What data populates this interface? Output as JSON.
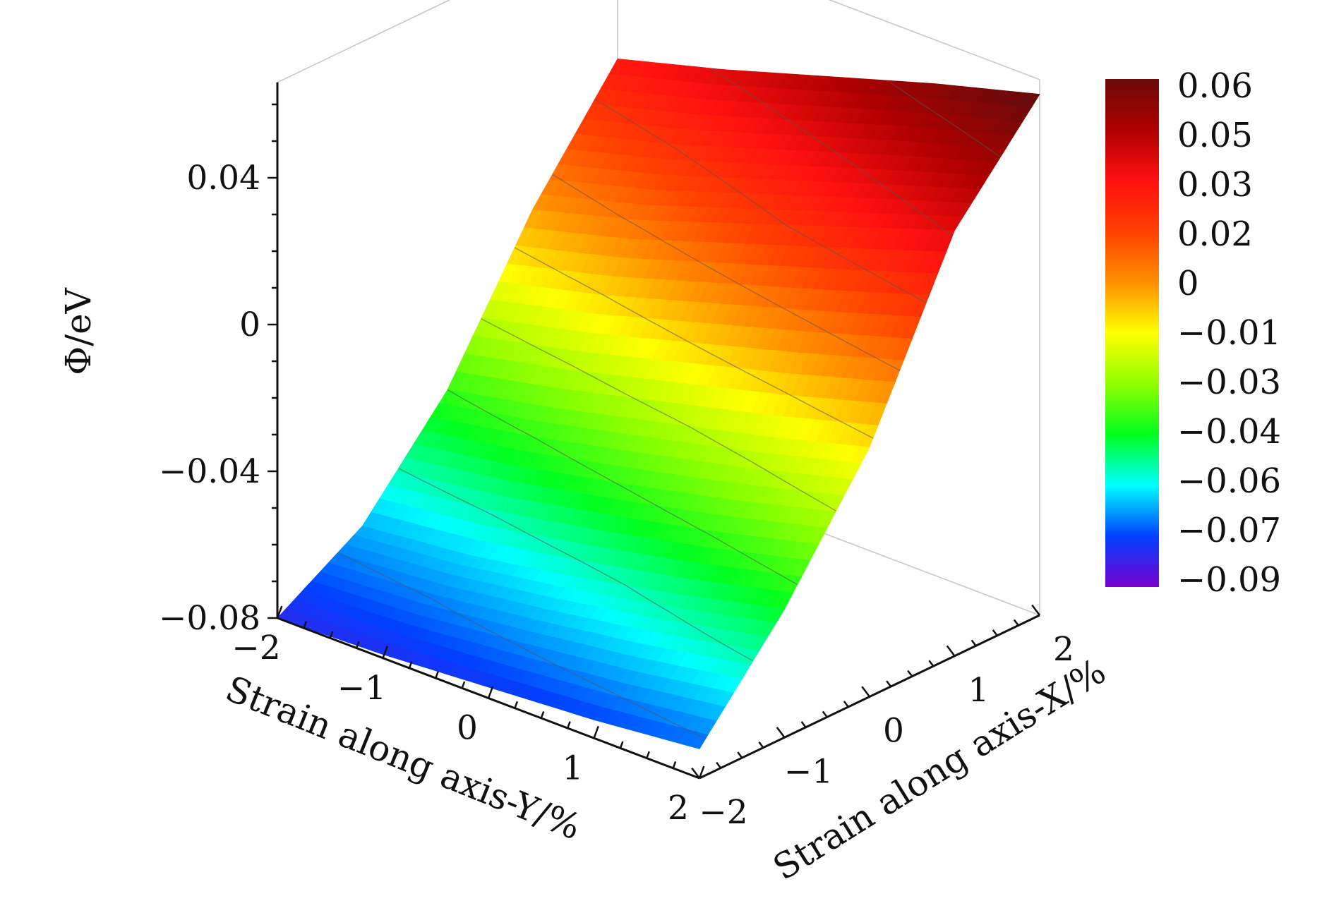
{
  "chart_data": {
    "type": "surface",
    "x_axis": {
      "title": "Strain along axis-X/%",
      "ticks": [
        -2,
        -1,
        0,
        1,
        2
      ],
      "tick_labels": [
        "−2",
        "−1",
        "0",
        "1",
        "2"
      ],
      "range": [
        -2,
        2
      ]
    },
    "y_axis": {
      "title": "Strain along axis-Y/%",
      "ticks": [
        -2,
        -1,
        0,
        1,
        2
      ],
      "tick_labels": [
        "−2",
        "−1",
        "0",
        "1",
        "2"
      ],
      "range": [
        -2,
        2
      ]
    },
    "z_axis": {
      "title": "Φ/eV",
      "ticks": [
        -0.08,
        -0.04,
        0,
        0.04
      ],
      "tick_labels": [
        "−0.08",
        "−0.04",
        "0",
        "0.04"
      ],
      "range": [
        -0.08,
        0.06
      ]
    },
    "colorbar": {
      "labels": [
        "0.06",
        "0.05",
        "0.03",
        "0.02",
        "0",
        "−0.01",
        "−0.03",
        "−0.04",
        "−0.06",
        "−0.07",
        "−0.09"
      ],
      "range": [
        -0.09,
        0.06
      ],
      "colormap": "rainbow",
      "colors": [
        "#6a0a0a",
        "#b00000",
        "#ff1010",
        "#ff4000",
        "#ff9000",
        "#ffff00",
        "#90ff00",
        "#00ff20",
        "#00ffff",
        "#0040ff",
        "#7a00d0"
      ]
    },
    "surface": {
      "x": [
        -2,
        -1,
        0,
        1,
        2
      ],
      "y": [
        -2,
        -1,
        0,
        1,
        2
      ],
      "z_approx": [
        [
          -0.08,
          -0.079,
          -0.077,
          -0.075,
          -0.072
        ],
        [
          -0.066,
          -0.063,
          -0.058,
          -0.052,
          -0.045
        ],
        [
          -0.04,
          -0.034,
          -0.027,
          -0.02,
          -0.012
        ],
        [
          -0.002,
          0.006,
          0.016,
          0.026,
          0.036
        ],
        [
          0.028,
          0.036,
          0.045,
          0.054,
          0.062
        ]
      ],
      "z_index_order": "rows = x from -2 to 2, columns = y from -2 to 2",
      "contour_lines": true
    },
    "grid": false
  }
}
